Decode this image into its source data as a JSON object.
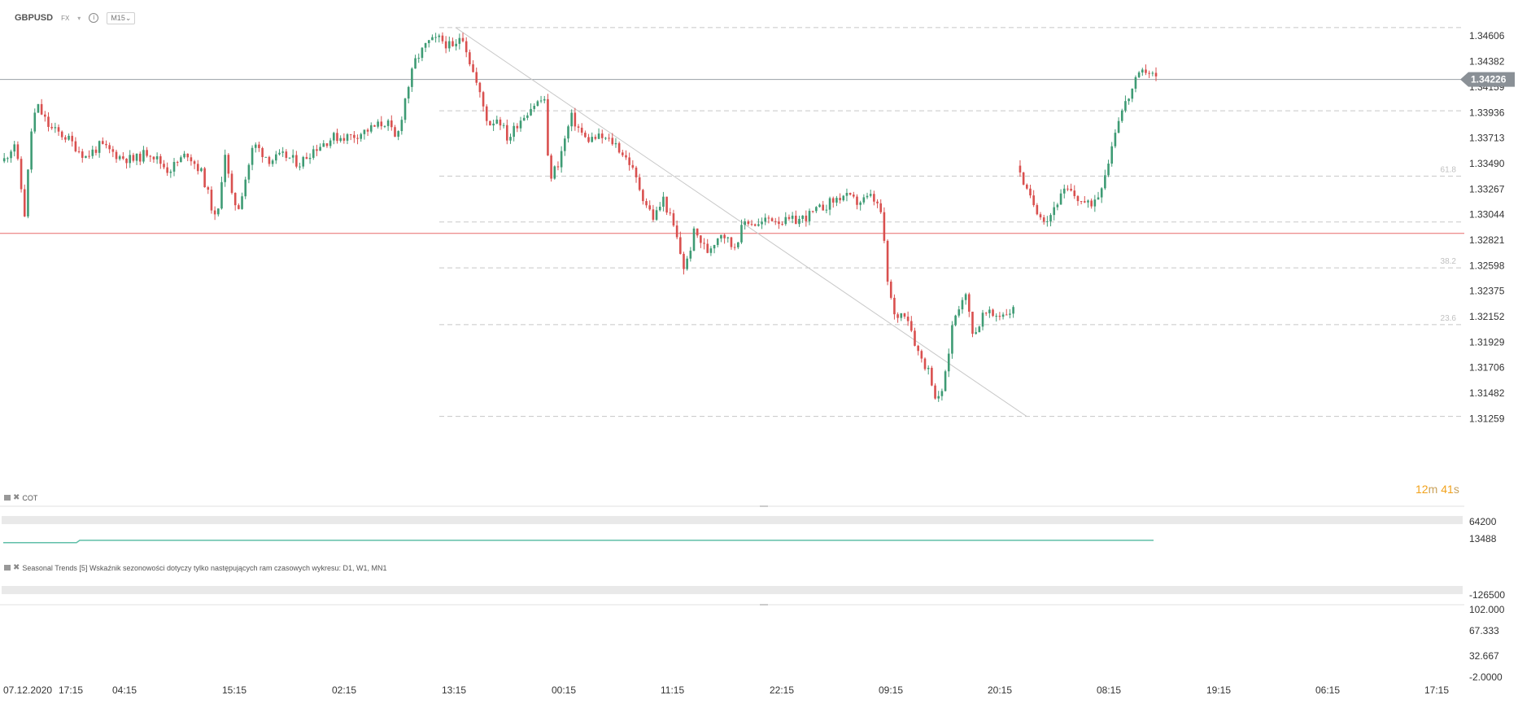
{
  "header": {
    "symbol": "GBPUSD",
    "market": "FX",
    "caret": "▾",
    "info": "i",
    "timeframe": "M15⌄"
  },
  "countdown": {
    "minutes": "12",
    "m_unit": "m",
    "seconds": "41",
    "s_unit": "s"
  },
  "colors": {
    "bull": "#3e9b74",
    "bear": "#d9504f",
    "support_line": "#e76a6a",
    "price_line": "#9aa0a6",
    "fib": "#c8c8c8",
    "indicator": "#5fbfa8",
    "countdown": "#f2a21b"
  },
  "price_axis": {
    "labels": [
      "1.34606",
      "1.34382",
      "1.34159",
      "1.33936",
      "1.33713",
      "1.33490",
      "1.33267",
      "1.33044",
      "1.32821",
      "1.32598",
      "1.32375",
      "1.32152",
      "1.31929",
      "1.31706",
      "1.31482",
      "1.31259"
    ],
    "current_price": "1.34226"
  },
  "time_axis": [
    "07.12.2020",
    "17:15",
    "04:15",
    "15:15",
    "02:15",
    "13:15",
    "00:15",
    "11:15",
    "22:15",
    "09:15",
    "20:15",
    "08:15",
    "19:15",
    "06:15",
    "17:15"
  ],
  "fib_labels": [
    "61.8",
    "38.2",
    "23.6"
  ],
  "panel_cot": {
    "label": "COT",
    "close": "✖",
    "axis": [
      "64200",
      "13488",
      "-126500"
    ]
  },
  "panel_seasonal": {
    "label": "Seasonal Trends [5] Wskaźnik sezonowości dotyczy tylko następujących ram czasowych wykresu: D1, W1, MN1",
    "close": "✖",
    "axis": [
      "102.000",
      "67.333",
      "32.667",
      "-2.0000"
    ]
  },
  "chart_data": {
    "type": "candlestick",
    "symbol": "GBPUSD",
    "timeframe": "M15",
    "ylim": [
      1.3122,
      1.3475
    ],
    "current_price": 1.34226,
    "support_level": 1.3288,
    "fibonacci_retracement": {
      "from": 1.3468,
      "to": 1.3128,
      "levels_shown": [
        "61.8",
        "38.2",
        "23.6"
      ]
    },
    "trendline": {
      "from": 1.3468,
      "to": 1.3128
    },
    "price_path": [
      [
        0,
        1.3351
      ],
      [
        12,
        1.3368
      ],
      [
        22,
        1.3305
      ],
      [
        30,
        1.3388
      ],
      [
        36,
        1.3398
      ],
      [
        48,
        1.338
      ],
      [
        65,
        1.3372
      ],
      [
        85,
        1.3355
      ],
      [
        100,
        1.3365
      ],
      [
        120,
        1.3355
      ],
      [
        135,
        1.3352
      ],
      [
        150,
        1.336
      ],
      [
        170,
        1.3343
      ],
      [
        190,
        1.3358
      ],
      [
        205,
        1.334
      ],
      [
        215,
        1.331
      ],
      [
        220,
        1.3295
      ],
      [
        228,
        1.3362
      ],
      [
        235,
        1.332
      ],
      [
        242,
        1.331
      ],
      [
        258,
        1.3366
      ],
      [
        275,
        1.3352
      ],
      [
        290,
        1.3356
      ],
      [
        305,
        1.3349
      ],
      [
        320,
        1.3362
      ],
      [
        340,
        1.3372
      ],
      [
        360,
        1.3373
      ],
      [
        380,
        1.338
      ],
      [
        395,
        1.3386
      ],
      [
        405,
        1.3368
      ],
      [
        415,
        1.341
      ],
      [
        425,
        1.344
      ],
      [
        438,
        1.3455
      ],
      [
        450,
        1.3458
      ],
      [
        465,
        1.3448
      ],
      [
        472,
        1.3465
      ],
      [
        480,
        1.344
      ],
      [
        490,
        1.3412
      ],
      [
        500,
        1.3383
      ],
      [
        510,
        1.339
      ],
      [
        520,
        1.337
      ],
      [
        530,
        1.3385
      ],
      [
        545,
        1.34
      ],
      [
        558,
        1.3406
      ],
      [
        562,
        1.3335
      ],
      [
        572,
        1.335
      ],
      [
        585,
        1.339
      ],
      [
        600,
        1.337
      ],
      [
        615,
        1.3372
      ],
      [
        630,
        1.3367
      ],
      [
        645,
        1.335
      ],
      [
        660,
        1.3318
      ],
      [
        670,
        1.3301
      ],
      [
        680,
        1.3318
      ],
      [
        692,
        1.329
      ],
      [
        702,
        1.3255
      ],
      [
        712,
        1.329
      ],
      [
        725,
        1.3272
      ],
      [
        740,
        1.329
      ],
      [
        752,
        1.3275
      ],
      [
        765,
        1.33
      ],
      [
        778,
        1.3295
      ],
      [
        790,
        1.3302
      ],
      [
        805,
        1.3298
      ],
      [
        820,
        1.33
      ],
      [
        835,
        1.3306
      ],
      [
        850,
        1.3314
      ],
      [
        865,
        1.3321
      ],
      [
        880,
        1.3315
      ],
      [
        895,
        1.332
      ],
      [
        905,
        1.3305
      ],
      [
        910,
        1.325
      ],
      [
        918,
        1.3215
      ],
      [
        930,
        1.322
      ],
      [
        942,
        1.3185
      ],
      [
        955,
        1.3165
      ],
      [
        962,
        1.3138
      ],
      [
        970,
        1.316
      ],
      [
        978,
        1.321
      ],
      [
        990,
        1.3238
      ],
      [
        1000,
        1.3198
      ],
      [
        1010,
        1.3218
      ],
      [
        1020,
        1.3216
      ],
      [
        1030,
        1.3218
      ],
      [
        1040,
        1.3221
      ],
      [
        1045,
        1.335
      ],
      [
        1055,
        1.3322
      ],
      [
        1065,
        1.3309
      ],
      [
        1075,
        1.3299
      ],
      [
        1085,
        1.3315
      ],
      [
        1095,
        1.3326
      ],
      [
        1108,
        1.3318
      ],
      [
        1118,
        1.3312
      ],
      [
        1128,
        1.3322
      ],
      [
        1138,
        1.335
      ],
      [
        1148,
        1.3388
      ],
      [
        1158,
        1.3405
      ],
      [
        1168,
        1.3423
      ],
      [
        1178,
        1.3432
      ],
      [
        1190,
        1.3422
      ]
    ],
    "cot_indicator": {
      "axis_range": [
        -126500,
        64200
      ],
      "level_left": 7500,
      "level_right": 13488
    },
    "seasonal_indicator": {
      "axis_range": [
        -2.0,
        102.0
      ]
    }
  }
}
